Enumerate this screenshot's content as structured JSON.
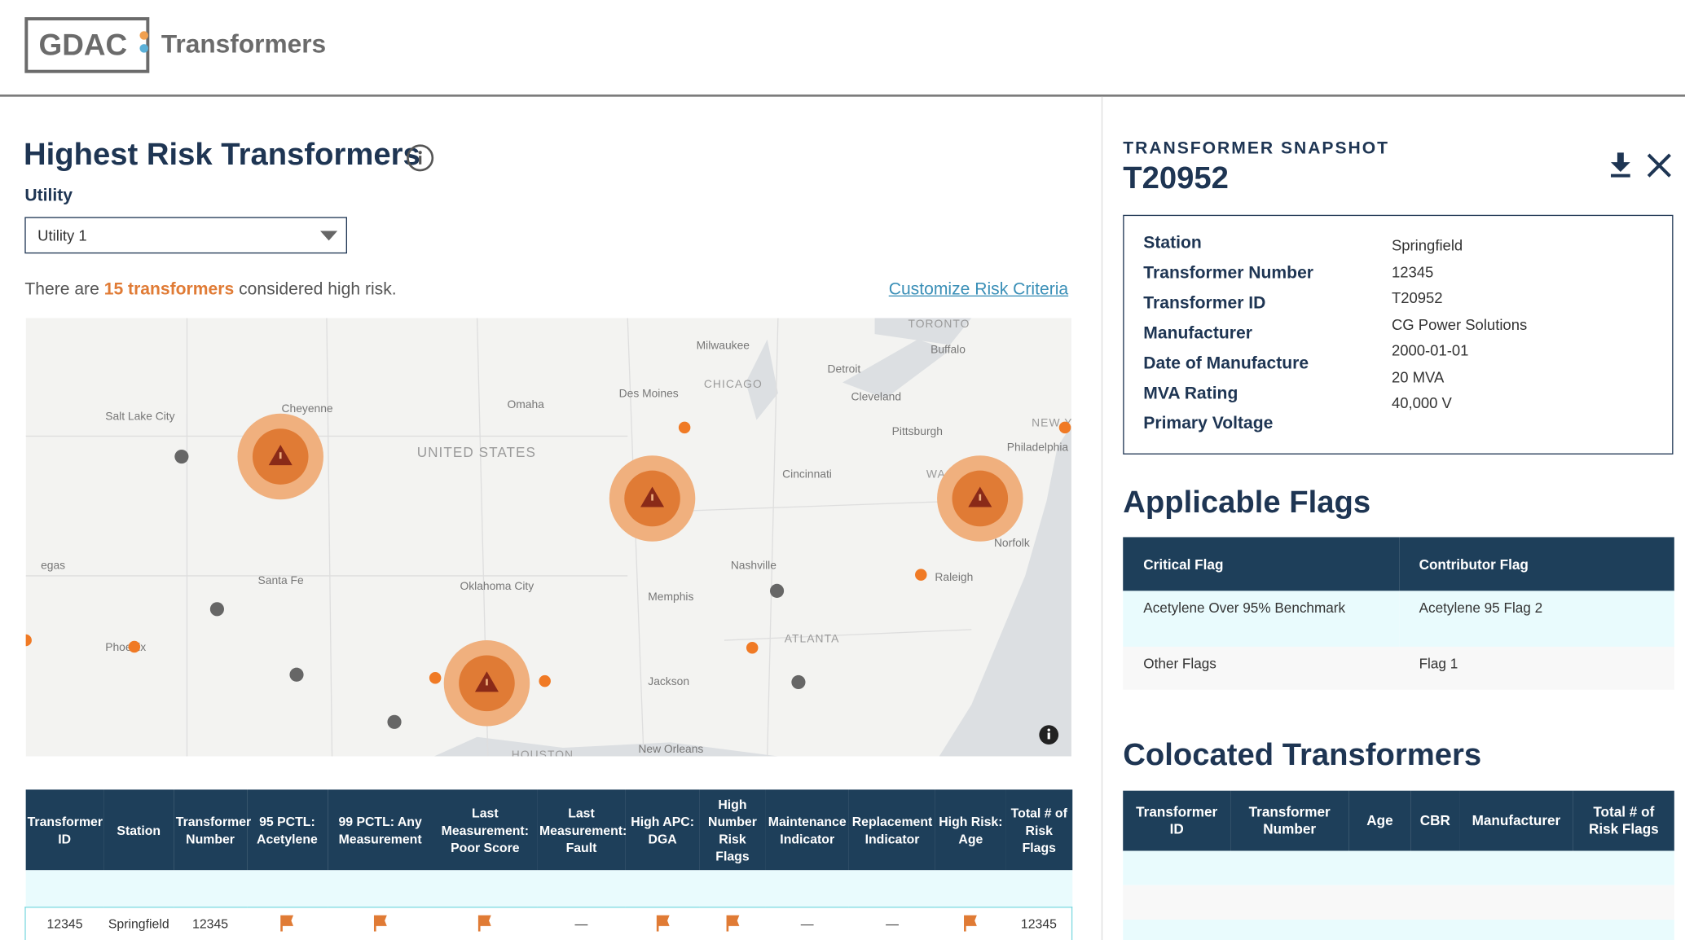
{
  "header": {
    "logo": "GDAC",
    "product": "Transformers"
  },
  "main": {
    "title": "Highest Risk Transformers",
    "utility_label": "Utility",
    "utility_select": "Utility 1",
    "summary": {
      "prefix": "There are",
      "highlight": "15 transformers",
      "suffix": "considered high risk."
    },
    "link": "Customize Risk Criteria"
  },
  "map": {
    "labels": [
      "Salt Lake City",
      "Cheyenne",
      "UNITED STATES",
      "Omaha",
      "Des Moines",
      "Milwaukee",
      "CHICAGO",
      "Detroit",
      "TORONTO",
      "Buffalo",
      "Cleveland",
      "Pittsburgh",
      "NEW YORK",
      "Philadelphia",
      "Cincinnati",
      "WASH",
      "Norfolk",
      "Nashville",
      "Raleigh",
      "Santa Fe",
      "Oklahoma City",
      "Memphis",
      "ATLANTA",
      "Phoenix",
      "Jackson",
      "New Orleans",
      "HOUSTON",
      "egas"
    ]
  },
  "table": {
    "headers": [
      "Transformer ID",
      "Station",
      "Transformer Number",
      "95 PCTL: Acetylene",
      "99 PCTL: Any Measurement",
      "Last Measurement: Poor Score",
      "Last Measurement: Fault",
      "High APC: DGA",
      "High Number Risk Flags",
      "Maintenance Indicator",
      "Replacement Indicator",
      "High Risk: Age",
      "Total # of Risk Flags"
    ],
    "rows": [
      [
        "12345",
        "Springfield",
        "12345",
        true,
        true,
        true,
        "—",
        true,
        true,
        "—",
        "—",
        true,
        "12345"
      ]
    ]
  },
  "snapshot": {
    "label": "TRANSFORMER SNAPSHOT",
    "id": "T20952",
    "fields": [
      {
        "label": "Station",
        "value": "Springfield"
      },
      {
        "label": "Transformer Number",
        "value": "12345"
      },
      {
        "label": "Transformer ID",
        "value": "T20952"
      },
      {
        "label": "Manufacturer",
        "value": "CG Power Solutions"
      },
      {
        "label": "Date of Manufacture",
        "value": "2000-01-01"
      },
      {
        "label": "MVA Rating",
        "value": "20 MVA"
      },
      {
        "label": "Primary Voltage",
        "value": "40,000 V"
      }
    ]
  },
  "flags": {
    "title": "Applicable Flags",
    "headers": [
      "Critical Flag",
      "Contributor Flag"
    ],
    "rows": [
      [
        "Acetylene Over 95% Benchmark",
        "Acetylene 95 Flag 2"
      ],
      [
        "Other Flags",
        "Flag 1"
      ]
    ]
  },
  "colocated": {
    "title": "Colocated Transformers",
    "headers": [
      "Transformer ID",
      "Transformer Number",
      "Age",
      "CBR",
      "Manufacturer",
      "Total # of Risk Flags"
    ]
  }
}
